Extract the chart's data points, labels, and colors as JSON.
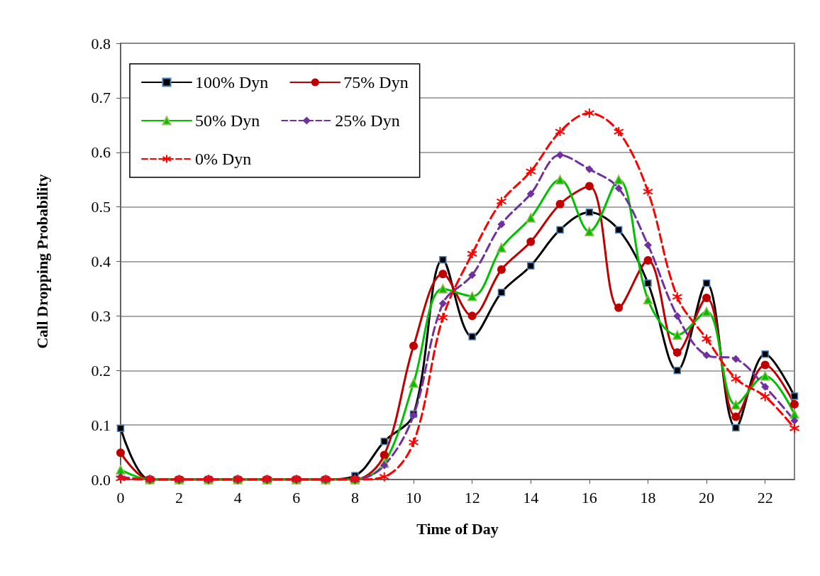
{
  "chart_data": {
    "type": "line",
    "xlabel": "Time of Day",
    "ylabel": "Call Dropping Probability",
    "x": [
      0,
      1,
      2,
      3,
      4,
      5,
      6,
      7,
      8,
      9,
      10,
      11,
      12,
      13,
      14,
      15,
      16,
      17,
      18,
      19,
      20,
      21,
      22,
      23
    ],
    "xlim": [
      0,
      23
    ],
    "xticks": [
      0,
      2,
      4,
      6,
      8,
      10,
      12,
      14,
      16,
      18,
      20,
      22
    ],
    "ylim": [
      0,
      0.8
    ],
    "yticks": [
      {
        "value": 0,
        "label": "0.0"
      },
      {
        "value": 0.1,
        "label": "0.1"
      },
      {
        "value": 0.2,
        "label": "0.2"
      },
      {
        "value": 0.3,
        "label": "0.3"
      },
      {
        "value": 0.4,
        "label": "0.4"
      },
      {
        "value": 0.5,
        "label": "0.5"
      },
      {
        "value": 0.6,
        "label": "0.6"
      },
      {
        "value": 0.7,
        "label": "0.7"
      },
      {
        "value": 0.8,
        "label": "0.8"
      }
    ],
    "grid": "y",
    "legend": "top left",
    "series": [
      {
        "name": "100% Dyn",
        "color": "#000000",
        "marker": "square",
        "line_style": "solid",
        "values": [
          0.094,
          0,
          0,
          0,
          0,
          0,
          0,
          0,
          0.007,
          0.07,
          0.12,
          0.403,
          0.262,
          0.343,
          0.392,
          0.458,
          0.49,
          0.458,
          0.36,
          0.2,
          0.36,
          0.095,
          0.23,
          0.153
        ]
      },
      {
        "name": "75% Dyn",
        "color": "#c00000",
        "marker": "circle",
        "line_style": "solid",
        "values": [
          0.049,
          0,
          0,
          0,
          0,
          0,
          0,
          0,
          0,
          0.045,
          0.245,
          0.377,
          0.3,
          0.385,
          0.436,
          0.505,
          0.538,
          0.315,
          0.402,
          0.233,
          0.333,
          0.115,
          0.21,
          0.138
        ]
      },
      {
        "name": "50% Dyn",
        "color": "#00c000",
        "marker": "triangle",
        "line_style": "solid",
        "values": [
          0.018,
          0,
          0,
          0,
          0,
          0,
          0,
          0,
          0,
          0.03,
          0.177,
          0.35,
          0.336,
          0.425,
          0.48,
          0.55,
          0.455,
          0.55,
          0.33,
          0.265,
          0.308,
          0.137,
          0.19,
          0.12
        ]
      },
      {
        "name": "25% Dyn",
        "color": "#7030a0",
        "marker": "diamond",
        "line_style": "dashed",
        "values": [
          0.005,
          0,
          0,
          0,
          0,
          0,
          0,
          0,
          0,
          0.026,
          0.118,
          0.323,
          0.375,
          0.468,
          0.524,
          0.595,
          0.569,
          0.534,
          0.43,
          0.3,
          0.228,
          0.221,
          0.17,
          0.108
        ]
      },
      {
        "name": "0% Dyn",
        "color": "#ff0000",
        "marker": "cross",
        "line_style": "dashed",
        "values": [
          0.002,
          0,
          0,
          0,
          0,
          0,
          0,
          0,
          0,
          0.005,
          0.068,
          0.297,
          0.414,
          0.51,
          0.565,
          0.638,
          0.672,
          0.638,
          0.528,
          0.335,
          0.258,
          0.185,
          0.152,
          0.094
        ]
      }
    ]
  }
}
